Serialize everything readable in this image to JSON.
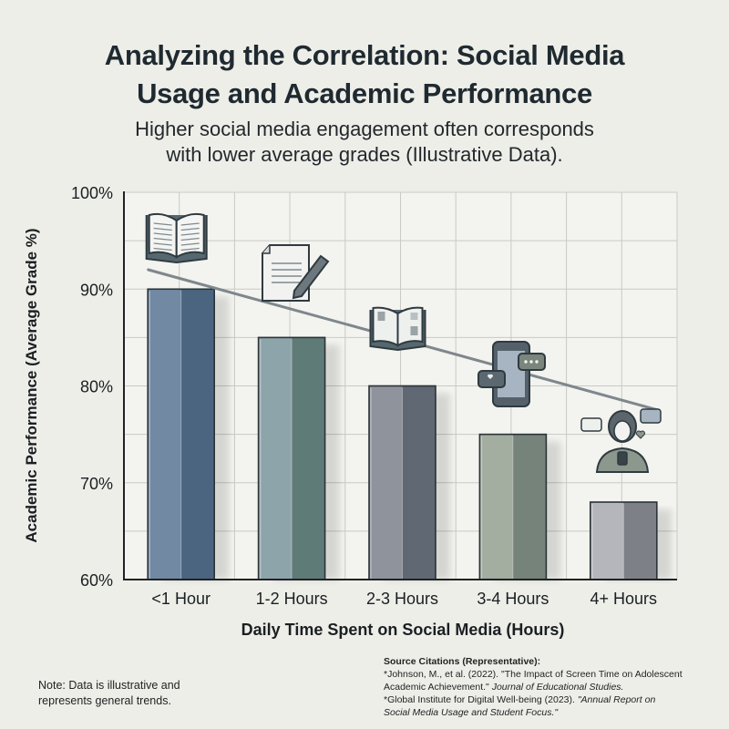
{
  "header": {
    "title_line1": "Analyzing the Correlation: Social Media",
    "title_line2": "Usage and Academic Performance",
    "subtitle_line1": "Higher social media engagement often corresponds",
    "subtitle_line2": "with lower average grades (Illustrative Data)."
  },
  "chart_data": {
    "type": "bar",
    "title": "Analyzing the Correlation: Social Media Usage and Academic Performance",
    "subtitle": "Higher social media engagement often corresponds with lower average grades (Illustrative Data).",
    "xlabel": "Daily Time Spent on Social Media (Hours)",
    "ylabel": "Academic Performance (Average Grade %)",
    "categories": [
      "<1 Hour",
      "1-2 Hours",
      "2-3 Hours",
      "3-4 Hours",
      "4+ Hours"
    ],
    "values": [
      90,
      85,
      80,
      75,
      68
    ],
    "ylim": [
      60,
      100
    ],
    "yticks": [
      60,
      70,
      80,
      90,
      100
    ],
    "ytick_labels": [
      "60%",
      "70%",
      "80%",
      "90%",
      "100%"
    ],
    "grid": true,
    "trend_line": {
      "start": 92,
      "end": 77.5
    },
    "bar_colors": [
      {
        "light": "#7189a3",
        "dark": "#4b6580"
      },
      {
        "light": "#8ea4ab",
        "dark": "#5f7b77"
      },
      {
        "light": "#8e939c",
        "dark": "#5f6873"
      },
      {
        "light": "#a3ada0",
        "dark": "#76837a"
      },
      {
        "light": "#b5b6bb",
        "dark": "#7e8087"
      }
    ],
    "icons": [
      "open-book-icon",
      "document-pencil-icon",
      "magazine-icon",
      "phone-chat-icon",
      "person-phone-icon"
    ]
  },
  "footer": {
    "note_line1": "Note: Data is illustrative and",
    "note_line2": "represents general trends.",
    "sources_header": "Source Citations (Representative):",
    "source1_a": "*Johnson, M., et al. (2022). \"The Impact of Screen Time on Adolescent",
    "source1_b": "Academic Achievement.\" ",
    "source1_journal": "Journal of Educational Studies.",
    "source2_a": "*Global Institute for Digital Well-being (2023). ",
    "source2_title_a": "\"Annual Report on",
    "source2_title_b": "Social Media Usage and Student Focus.\""
  }
}
